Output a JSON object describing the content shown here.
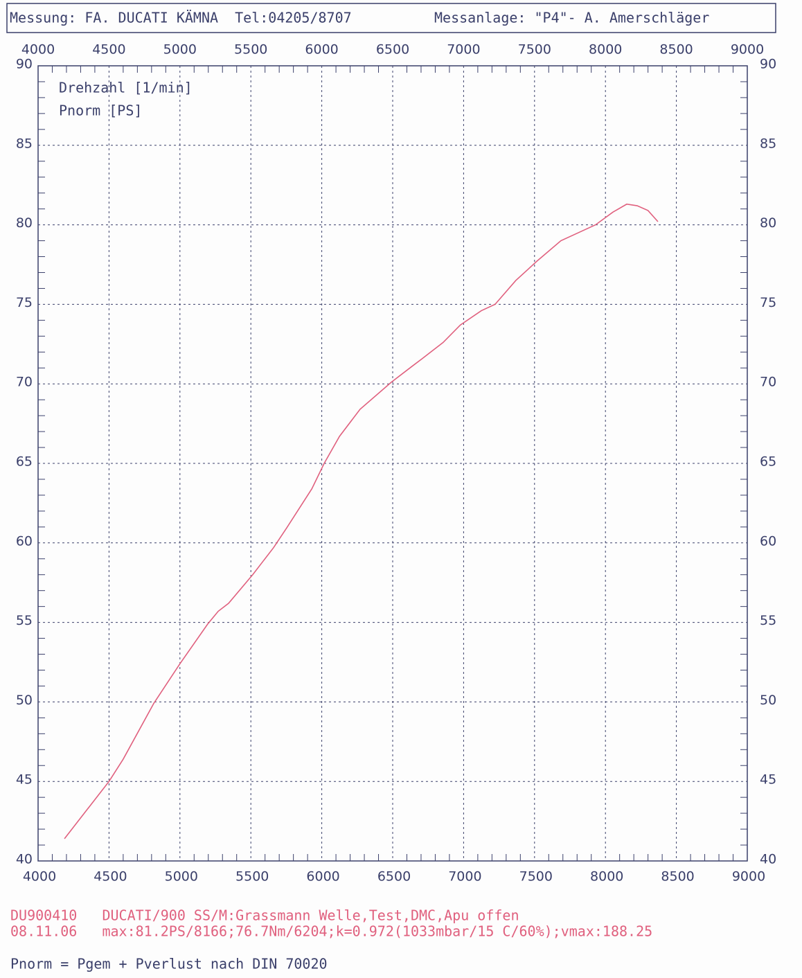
{
  "header": {
    "left": "Messung: FA. DUCATI KÄMNA  Tel:04205/8707",
    "right": "Messanlage: \"P4\"- A. Amerschläger"
  },
  "chart_data": {
    "type": "line",
    "xlabel": "Drehzahl [1/min]",
    "ylabel": "Pnorm [PS]",
    "x": [
      4186,
      4500,
      4600,
      4815,
      5000,
      5196,
      5270,
      5343,
      5513,
      5660,
      5757,
      5930,
      6017,
      6125,
      6270,
      6490,
      6636,
      6710,
      6855,
      6977,
      7125,
      7222,
      7368,
      7515,
      7686,
      7808,
      7930,
      8053,
      8150,
      8224,
      8300,
      8370
    ],
    "series": [
      {
        "name": "Pnorm [PS]",
        "color": "#e0607e",
        "values": [
          41.4,
          45.0,
          46.4,
          49.9,
          52.4,
          54.9,
          55.7,
          56.2,
          58.0,
          59.7,
          61.0,
          63.4,
          65.0,
          66.7,
          68.4,
          70.1,
          71.1,
          71.6,
          72.6,
          73.7,
          74.6,
          75.0,
          76.5,
          77.7,
          79.0,
          79.5,
          80.0,
          80.8,
          81.3,
          81.2,
          80.9,
          80.2
        ]
      }
    ],
    "xlim": [
      4000,
      9000
    ],
    "xticks": [
      4000,
      4500,
      5000,
      5500,
      6000,
      6500,
      7000,
      7500,
      8000,
      8500,
      9000
    ],
    "ylim": [
      40,
      90
    ],
    "yticks": [
      40,
      45,
      50,
      55,
      60,
      65,
      70,
      75,
      80,
      85,
      90
    ],
    "grid": true
  },
  "footer": [
    "DU900410   DUCATI/900 SS/M:Grassmann Welle,Test,DMC,Apu offen",
    "08.11.06   max:81.2PS/8166;76.7Nm/6204;k=0.972(1033mbar/15 C/60%);vmax:188.25",
    "Pnorm = Pgem + Pverlust nach DIN 70020"
  ]
}
